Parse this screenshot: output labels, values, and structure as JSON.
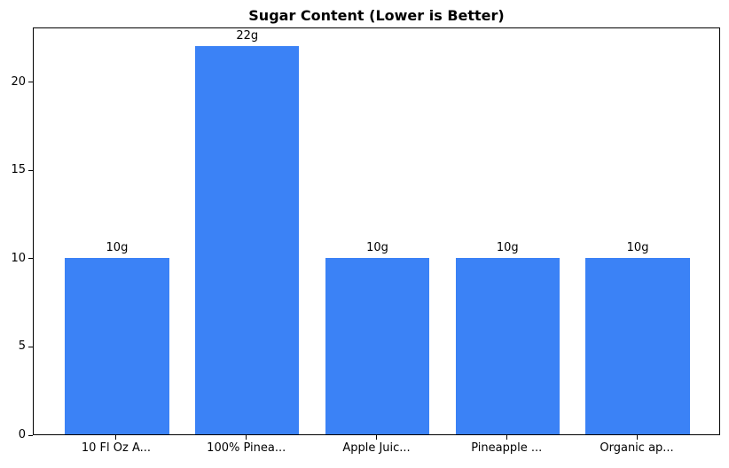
{
  "chart_data": {
    "type": "bar",
    "title": "Sugar Content (Lower is Better)",
    "categories": [
      "10 Fl Oz A...",
      "100% Pinea...",
      "Apple Juic...",
      "Pineapple ...",
      "Organic ap..."
    ],
    "values": [
      10,
      22,
      10,
      10,
      10
    ],
    "value_labels": [
      "10g",
      "22g",
      "10g",
      "10g",
      "10g"
    ],
    "yticks": [
      0,
      5,
      10,
      15,
      20
    ],
    "ylim": [
      0,
      23.1
    ],
    "xlabel": "",
    "ylabel": "",
    "grid": false,
    "legend": null,
    "bar_color": "#3b82f6",
    "axis_color": "#000000",
    "background_color": "#ffffff",
    "bar_width_fraction": 0.8,
    "x_edge_margin_units": 0.64
  }
}
